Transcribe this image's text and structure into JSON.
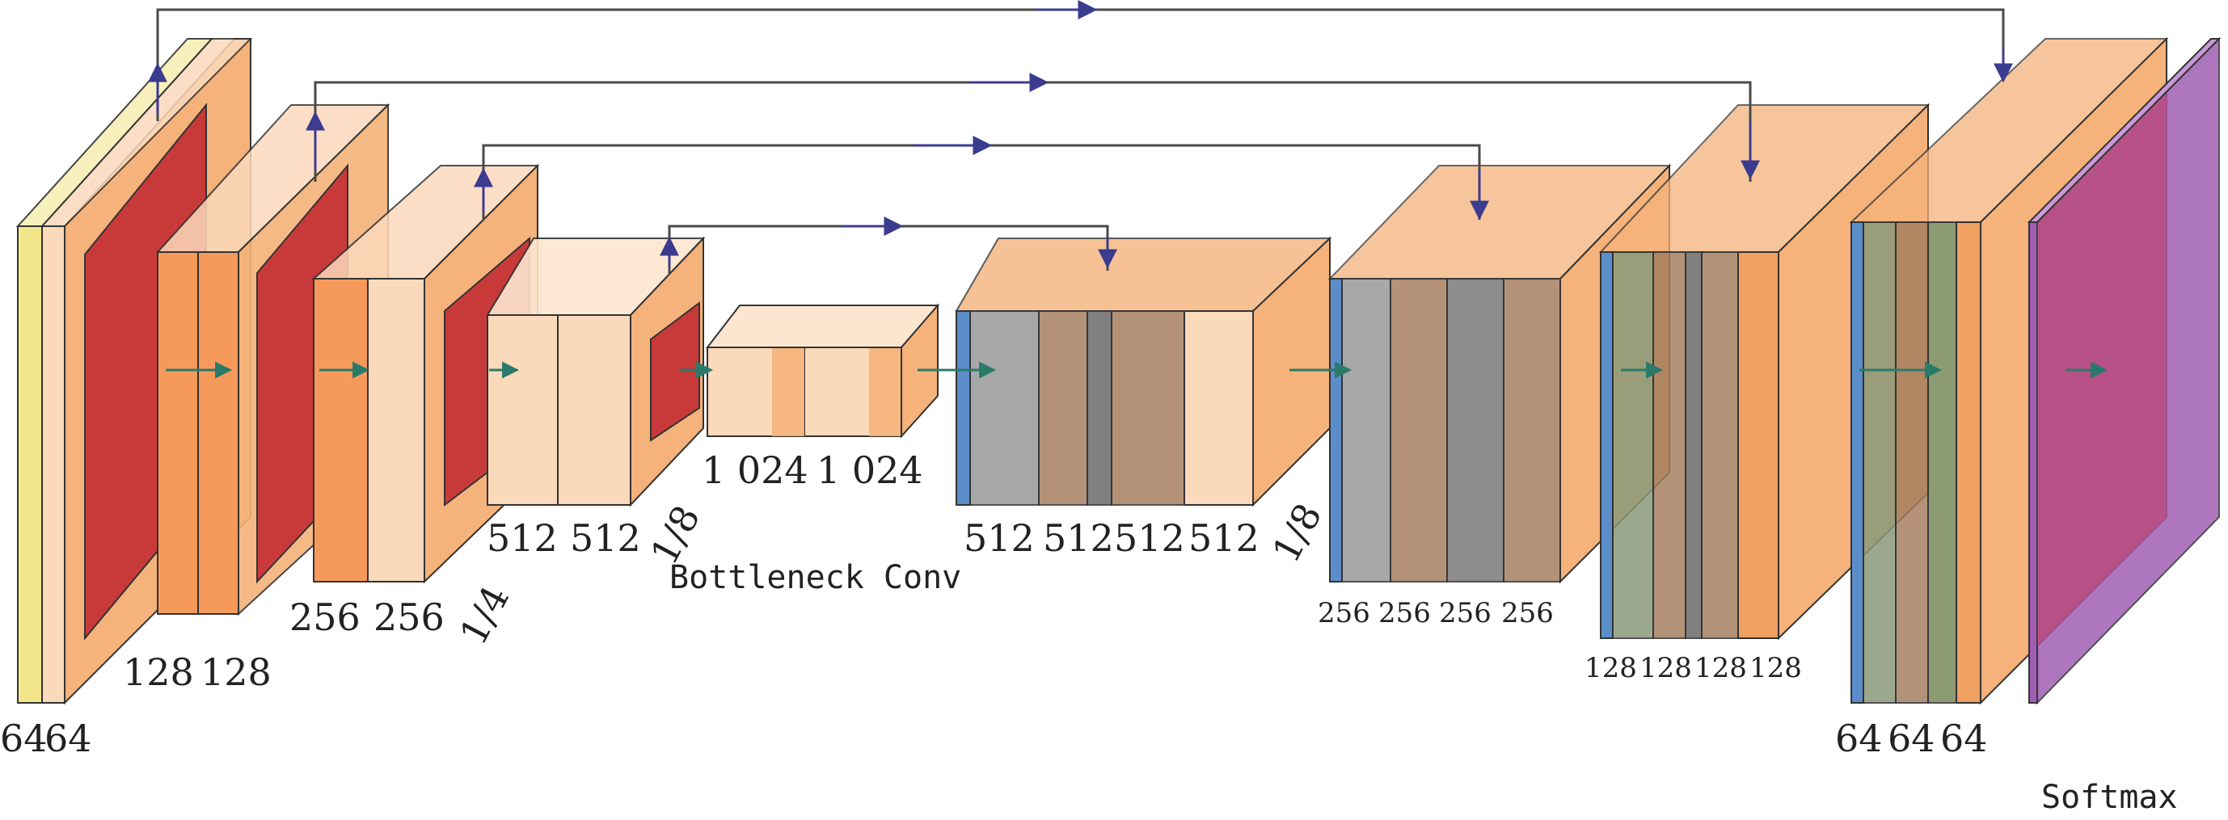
{
  "figure": {
    "encoder_labels": {
      "enc1": [
        "64",
        "64"
      ],
      "enc2": [
        "128",
        "128"
      ],
      "enc3": [
        "256",
        "256"
      ],
      "enc4": [
        "512",
        "512"
      ],
      "bottleneck": [
        "1 024",
        "1 024"
      ]
    },
    "scale_labels": {
      "quarter": "1/4",
      "eighth_left": "1/8",
      "eighth_right": "1/8"
    },
    "bottleneck_caption": "Bottleneck Conv",
    "decoder_labels": {
      "dec4": [
        "512",
        "512",
        "512",
        "512"
      ],
      "dec3": [
        "256",
        "256",
        "256",
        "256"
      ],
      "dec2": [
        "128",
        "128",
        "128",
        "128"
      ],
      "dec1": [
        "64",
        "64",
        "64"
      ]
    },
    "output_label": "Softmax",
    "colors": {
      "conv": "#f5b27a",
      "conv_face": "#fbd9bb",
      "pool": "#c83a3a",
      "up": "#5b8ec9",
      "concat": "#9a9a9a",
      "softmax": "#a05fb5",
      "yellow": "#f3e58a",
      "arrow": "#3b3b8f",
      "flow": "#2a7a6a"
    }
  }
}
